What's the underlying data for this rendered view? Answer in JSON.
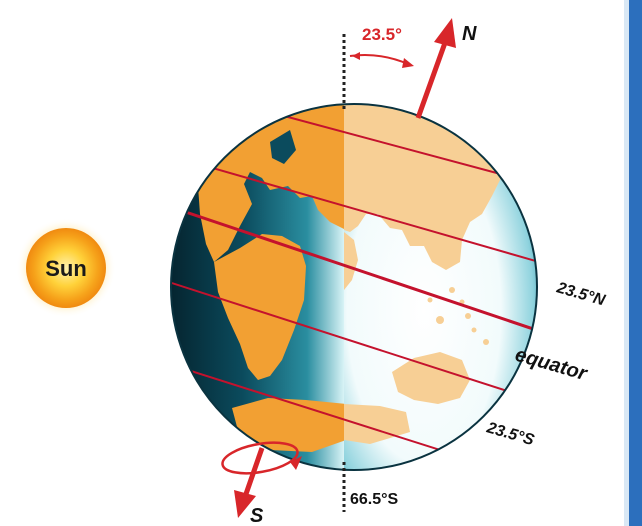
{
  "sun": {
    "label": "Sun"
  },
  "tilt": {
    "angle_label": "23.5°",
    "degrees": 23.5
  },
  "axis": {
    "north_label": "N",
    "south_label": "S"
  },
  "latitudes": {
    "tropic_cancer": "23.5°N",
    "equator": "equator",
    "tropic_capricorn": "23.5°S",
    "antarctic_circle": "66.5°S"
  },
  "colors": {
    "land_day": "#f7cf95",
    "land_night": "#f2a033",
    "ocean_day": "#ffffff",
    "ocean_night": "#0a4a5c",
    "latitude_line": "#c4122d",
    "axis_arrow": "#d8262a",
    "sun_core": "#f6a21a",
    "background_strip": "#2c6fbd"
  }
}
